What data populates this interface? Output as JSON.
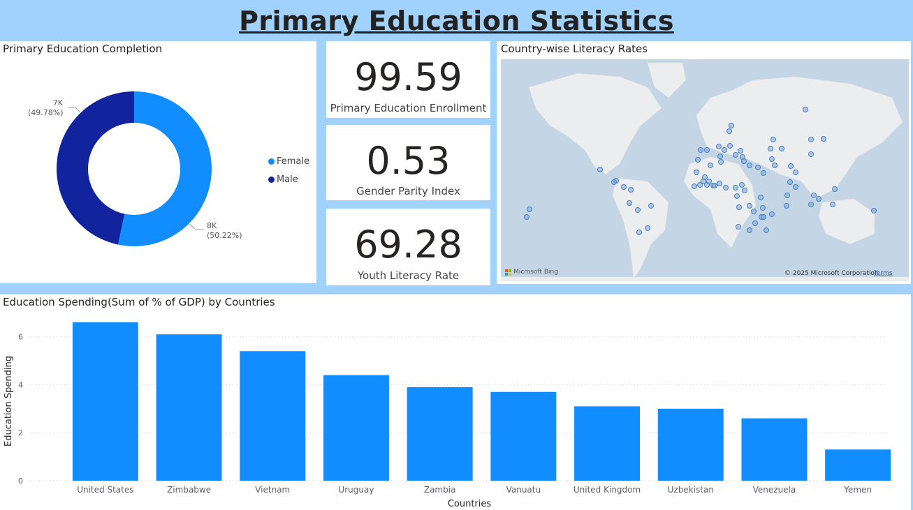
{
  "page_title": "Primary Education Statistics",
  "donut": {
    "title": "Primary Education Completion",
    "legend": [
      {
        "label": "Female",
        "color": "#118DFF"
      },
      {
        "label": "Male",
        "color": "#12239E"
      }
    ],
    "labels": {
      "female_value": "8K",
      "female_pct": "(50.22%)",
      "male_value": "7K",
      "male_pct": "(49.78%)"
    }
  },
  "kpis": [
    {
      "value": "99.59",
      "label": "Primary Education Enrollment"
    },
    {
      "value": "0.53",
      "label": "Gender Parity Index"
    },
    {
      "value": "69.28",
      "label": "Youth Literacy Rate"
    }
  ],
  "map": {
    "title": "Country-wise Literacy Rates",
    "logo_text": "Microsoft Bing",
    "copyright": "© 2025 Microsoft Corporation",
    "terms_link": "Terms"
  },
  "bar": {
    "title": "Education Spending(Sum of % of GDP) by Countries"
  },
  "chart_data": [
    {
      "type": "pie",
      "title": "Primary Education Completion",
      "categories": [
        "Female",
        "Male"
      ],
      "values": [
        8000,
        7000
      ],
      "percentages": [
        50.22,
        49.78
      ],
      "legend_position": "right"
    },
    {
      "type": "bar",
      "title": "Education Spending(Sum of % of GDP) by Countries",
      "xlabel": "Countries",
      "ylabel": "Education Spending",
      "categories": [
        "United States",
        "Zimbabwe",
        "Vietnam",
        "Uruguay",
        "Zambia",
        "Vanuatu",
        "United Kingdom",
        "Uzbekistan",
        "Venezuela",
        "Yemen"
      ],
      "values": [
        6.6,
        6.1,
        5.4,
        4.4,
        3.9,
        3.7,
        3.1,
        3.0,
        2.6,
        1.3
      ],
      "ylim": [
        0,
        6.6
      ],
      "yticks": [
        "0",
        "2",
        "4",
        "6"
      ],
      "grid": true,
      "bar_color": "#118DFF"
    }
  ]
}
